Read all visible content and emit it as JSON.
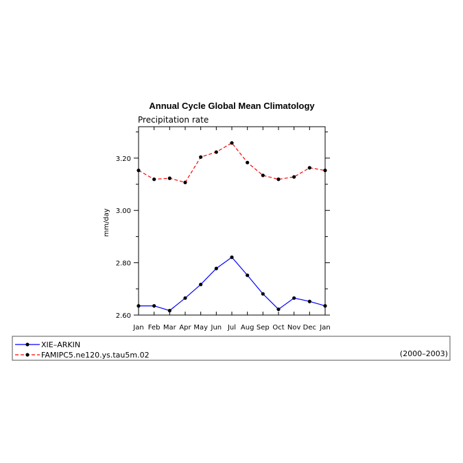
{
  "chart_data": {
    "type": "line",
    "title": "Annual Cycle Global Mean Climatology",
    "subtitle": "Precipitation rate",
    "xlabel": "",
    "ylabel": "mm/day",
    "categories": [
      "Jan",
      "Feb",
      "Mar",
      "Apr",
      "May",
      "Jun",
      "Jul",
      "Aug",
      "Sep",
      "Oct",
      "Nov",
      "Dec",
      "Jan"
    ],
    "ylim": [
      2.6,
      3.32
    ],
    "yticks_major": [
      2.6,
      2.8,
      3.0,
      3.2
    ],
    "ytick_labels": [
      "2.60",
      "2.80",
      "3.00",
      "3.20"
    ],
    "yticks_minor": [
      2.7,
      2.9,
      3.1,
      3.3
    ],
    "grid": false,
    "legend_position": "bottom",
    "legend_note": "(2000–2003)",
    "series": [
      {
        "name": "XIE–ARKIN",
        "color": "#0000ff",
        "dash": "solid",
        "values": [
          2.635,
          2.635,
          2.617,
          2.665,
          2.717,
          2.778,
          2.821,
          2.752,
          2.681,
          2.622,
          2.665,
          2.652,
          2.635
        ]
      },
      {
        "name": "FAMIPC5.ne120.ys.tau5m.02",
        "color": "#ff0000",
        "dash": "dashed",
        "values": [
          3.153,
          3.119,
          3.123,
          3.107,
          3.204,
          3.223,
          3.258,
          3.183,
          3.134,
          3.119,
          3.128,
          3.163,
          3.153
        ]
      }
    ]
  }
}
